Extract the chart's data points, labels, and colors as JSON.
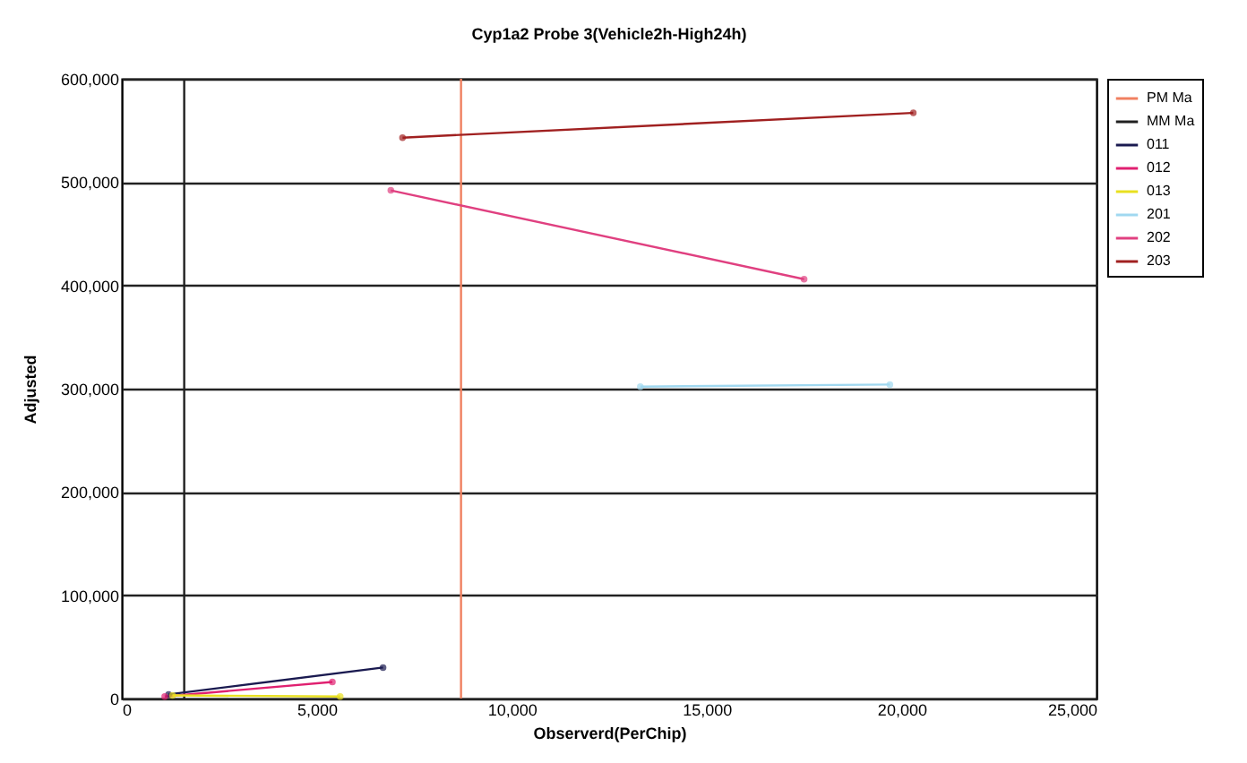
{
  "chart_data": {
    "type": "line",
    "title": "Cyp1a2 Probe 3(Vehicle2h-High24h)",
    "xlabel": "Observerd(PerChip)",
    "ylabel": "Adjusted",
    "xlim": [
      0,
      25000
    ],
    "xticks": [
      0,
      {
        "value": 5000,
        "label": "5,000"
      },
      {
        "value": 10000,
        "label": "10,000"
      },
      {
        "value": 15000,
        "label": "15,000"
      },
      {
        "value": 20000,
        "label": "20,000"
      },
      {
        "value": 25000,
        "label": "25,000"
      }
    ],
    "ylim": [
      0,
      600000
    ],
    "yticks": [
      0,
      {
        "value": 100000,
        "label": "100,000"
      },
      {
        "value": 200000,
        "label": "200,000"
      },
      {
        "value": 300000,
        "label": "300,000"
      },
      {
        "value": 400000,
        "label": "400,000"
      },
      {
        "value": 500000,
        "label": "500,000"
      },
      {
        "value": 600000,
        "label": "600,000"
      }
    ],
    "grid": "y",
    "legend": "right",
    "marker": "circle",
    "series": [
      {
        "name": "PM Ma",
        "color": "#f08060",
        "x": [
          8700,
          8700
        ],
        "values": [
          0,
          600000
        ],
        "marker": "none"
      },
      {
        "name": "MM Ma",
        "color": "#202020",
        "x": [
          1600,
          1600
        ],
        "values": [
          0,
          600000
        ],
        "marker": "none"
      },
      {
        "name": "011",
        "color": "#1a1a50",
        "x": [
          1200,
          6700
        ],
        "values": [
          4000,
          30000
        ]
      },
      {
        "name": "012",
        "color": "#e02070",
        "x": [
          1100,
          5400
        ],
        "values": [
          2000,
          16000
        ]
      },
      {
        "name": "013",
        "color": "#e8e020",
        "x": [
          1300,
          5600
        ],
        "values": [
          3000,
          2000
        ]
      },
      {
        "name": "201",
        "color": "#a0d8f0",
        "x": [
          13300,
          19700
        ],
        "values": [
          302000,
          304000
        ]
      },
      {
        "name": "202",
        "color": "#e04080",
        "x": [
          6900,
          17500
        ],
        "values": [
          492000,
          406000
        ]
      },
      {
        "name": "203",
        "color": "#a02020",
        "x": [
          7200,
          20300
        ],
        "values": [
          543000,
          567000
        ]
      }
    ]
  }
}
